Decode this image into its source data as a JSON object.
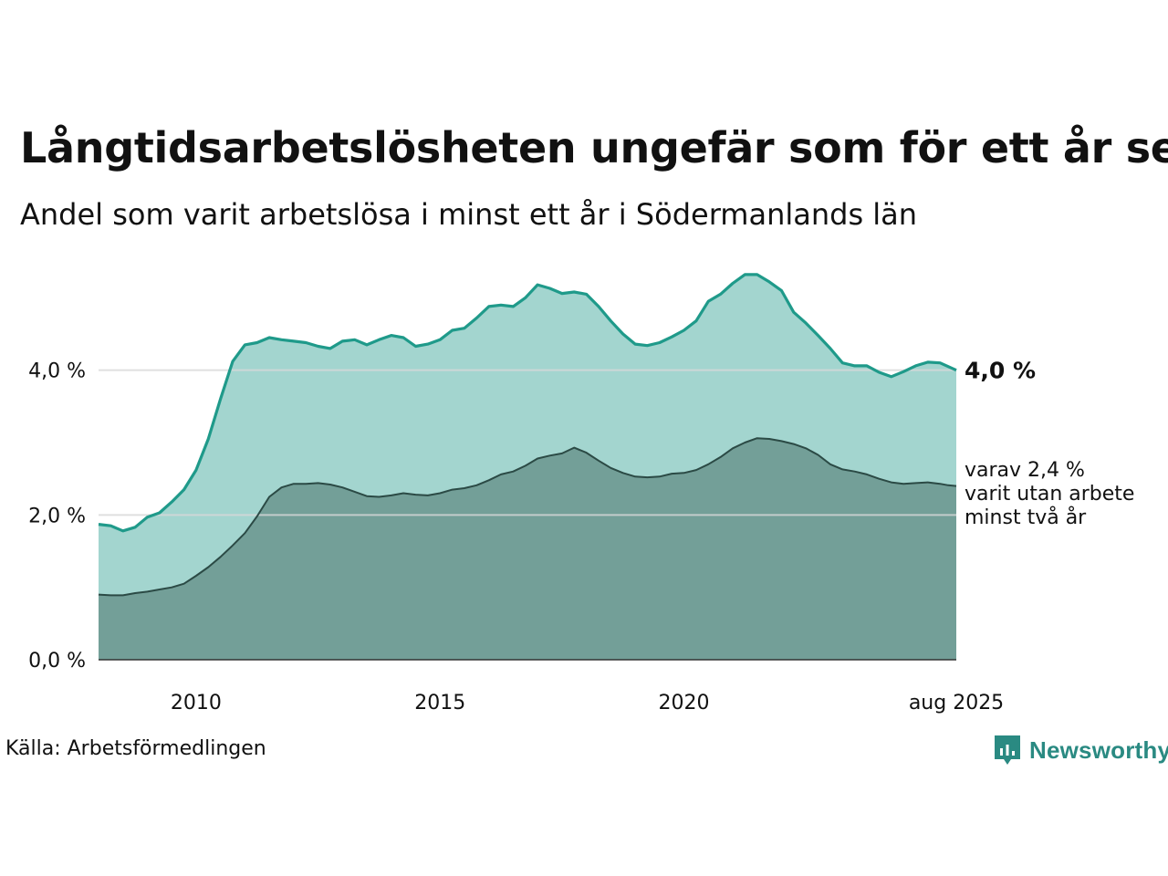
{
  "title": "Långtidsarbetslösheten ungefär som för ett år sen",
  "subtitle": "Andel som varit arbetslösa i minst ett år i Södermanlands län",
  "source": "Källa: Arbetsförmedlingen",
  "brand": "Newsworthy",
  "colors": {
    "total_line": "#1f9a8a",
    "total_fill": "#a3d5cf",
    "long_fill": "#739f98",
    "long_line": "#2b4a45",
    "grid": "#d8d8d8",
    "brand": "#2a8a82"
  },
  "chart_data": {
    "type": "area",
    "x_unit": "date",
    "xlim": [
      "2008-01",
      "2025-08"
    ],
    "ylim": [
      0,
      6
    ],
    "y_ticks": [
      "0,0 %",
      "2,0 %",
      "4,0 %"
    ],
    "x_ticks": [
      "2010",
      "2015",
      "2020",
      "aug 2025"
    ],
    "grid": "horizontal",
    "end_label_total": "4,0 %",
    "end_label_long": [
      "varav 2,4 %",
      "varit utan arbete",
      "minst två år"
    ],
    "series": [
      {
        "key": "total",
        "points": [
          [
            "2008-01",
            1.87
          ],
          [
            "2008-04",
            1.85
          ],
          [
            "2008-07",
            1.78
          ],
          [
            "2008-10",
            1.83
          ],
          [
            "2009-01",
            1.97
          ],
          [
            "2009-04",
            2.03
          ],
          [
            "2009-07",
            2.18
          ],
          [
            "2009-10",
            2.35
          ],
          [
            "2010-01",
            2.62
          ],
          [
            "2010-04",
            3.05
          ],
          [
            "2010-07",
            3.6
          ],
          [
            "2010-10",
            4.12
          ],
          [
            "2011-01",
            4.35
          ],
          [
            "2011-04",
            4.38
          ],
          [
            "2011-07",
            4.45
          ],
          [
            "2011-10",
            4.42
          ],
          [
            "2012-01",
            4.4
          ],
          [
            "2012-04",
            4.38
          ],
          [
            "2012-07",
            4.33
          ],
          [
            "2012-10",
            4.3
          ],
          [
            "2013-01",
            4.4
          ],
          [
            "2013-04",
            4.42
          ],
          [
            "2013-07",
            4.35
          ],
          [
            "2013-10",
            4.42
          ],
          [
            "2014-01",
            4.48
          ],
          [
            "2014-04",
            4.45
          ],
          [
            "2014-07",
            4.33
          ],
          [
            "2014-10",
            4.36
          ],
          [
            "2015-01",
            4.42
          ],
          [
            "2015-04",
            4.55
          ],
          [
            "2015-07",
            4.58
          ],
          [
            "2015-10",
            4.72
          ],
          [
            "2016-01",
            4.88
          ],
          [
            "2016-04",
            4.9
          ],
          [
            "2016-07",
            4.88
          ],
          [
            "2016-10",
            5.0
          ],
          [
            "2017-01",
            5.18
          ],
          [
            "2017-04",
            5.13
          ],
          [
            "2017-07",
            5.06
          ],
          [
            "2017-10",
            5.08
          ],
          [
            "2018-01",
            5.05
          ],
          [
            "2018-04",
            4.88
          ],
          [
            "2018-07",
            4.68
          ],
          [
            "2018-10",
            4.5
          ],
          [
            "2019-01",
            4.36
          ],
          [
            "2019-04",
            4.34
          ],
          [
            "2019-07",
            4.38
          ],
          [
            "2019-10",
            4.46
          ],
          [
            "2020-01",
            4.55
          ],
          [
            "2020-04",
            4.68
          ],
          [
            "2020-07",
            4.95
          ],
          [
            "2020-10",
            5.05
          ],
          [
            "2021-01",
            5.2
          ],
          [
            "2021-04",
            5.32
          ],
          [
            "2021-07",
            5.32
          ],
          [
            "2021-10",
            5.22
          ],
          [
            "2022-01",
            5.1
          ],
          [
            "2022-04",
            4.8
          ],
          [
            "2022-07",
            4.65
          ],
          [
            "2022-10",
            4.48
          ],
          [
            "2023-01",
            4.3
          ],
          [
            "2023-04",
            4.1
          ],
          [
            "2023-07",
            4.06
          ],
          [
            "2023-10",
            4.06
          ],
          [
            "2024-01",
            3.97
          ],
          [
            "2024-04",
            3.91
          ],
          [
            "2024-07",
            3.98
          ],
          [
            "2024-10",
            4.06
          ],
          [
            "2025-01",
            4.11
          ],
          [
            "2025-04",
            4.1
          ],
          [
            "2025-06",
            4.05
          ],
          [
            "2025-08",
            4.0
          ]
        ]
      },
      {
        "key": "long",
        "points": [
          [
            "2008-01",
            0.9
          ],
          [
            "2008-04",
            0.89
          ],
          [
            "2008-07",
            0.89
          ],
          [
            "2008-10",
            0.92
          ],
          [
            "2009-01",
            0.94
          ],
          [
            "2009-04",
            0.97
          ],
          [
            "2009-07",
            1.0
          ],
          [
            "2009-10",
            1.05
          ],
          [
            "2010-01",
            1.16
          ],
          [
            "2010-04",
            1.28
          ],
          [
            "2010-07",
            1.42
          ],
          [
            "2010-10",
            1.58
          ],
          [
            "2011-01",
            1.75
          ],
          [
            "2011-04",
            1.98
          ],
          [
            "2011-07",
            2.25
          ],
          [
            "2011-10",
            2.38
          ],
          [
            "2012-01",
            2.43
          ],
          [
            "2012-04",
            2.43
          ],
          [
            "2012-07",
            2.44
          ],
          [
            "2012-10",
            2.42
          ],
          [
            "2013-01",
            2.38
          ],
          [
            "2013-04",
            2.32
          ],
          [
            "2013-07",
            2.26
          ],
          [
            "2013-10",
            2.25
          ],
          [
            "2014-01",
            2.27
          ],
          [
            "2014-04",
            2.3
          ],
          [
            "2014-07",
            2.28
          ],
          [
            "2014-10",
            2.27
          ],
          [
            "2015-01",
            2.3
          ],
          [
            "2015-04",
            2.35
          ],
          [
            "2015-07",
            2.37
          ],
          [
            "2015-10",
            2.41
          ],
          [
            "2016-01",
            2.48
          ],
          [
            "2016-04",
            2.56
          ],
          [
            "2016-07",
            2.6
          ],
          [
            "2016-10",
            2.68
          ],
          [
            "2017-01",
            2.78
          ],
          [
            "2017-04",
            2.82
          ],
          [
            "2017-07",
            2.85
          ],
          [
            "2017-10",
            2.93
          ],
          [
            "2018-01",
            2.86
          ],
          [
            "2018-04",
            2.75
          ],
          [
            "2018-07",
            2.65
          ],
          [
            "2018-10",
            2.58
          ],
          [
            "2019-01",
            2.53
          ],
          [
            "2019-04",
            2.52
          ],
          [
            "2019-07",
            2.53
          ],
          [
            "2019-10",
            2.57
          ],
          [
            "2020-01",
            2.58
          ],
          [
            "2020-04",
            2.62
          ],
          [
            "2020-07",
            2.7
          ],
          [
            "2020-10",
            2.8
          ],
          [
            "2021-01",
            2.92
          ],
          [
            "2021-04",
            3.0
          ],
          [
            "2021-07",
            3.06
          ],
          [
            "2021-10",
            3.05
          ],
          [
            "2022-01",
            3.02
          ],
          [
            "2022-04",
            2.98
          ],
          [
            "2022-07",
            2.92
          ],
          [
            "2022-10",
            2.83
          ],
          [
            "2023-01",
            2.7
          ],
          [
            "2023-04",
            2.63
          ],
          [
            "2023-07",
            2.6
          ],
          [
            "2023-10",
            2.56
          ],
          [
            "2024-01",
            2.5
          ],
          [
            "2024-04",
            2.45
          ],
          [
            "2024-07",
            2.43
          ],
          [
            "2024-10",
            2.44
          ],
          [
            "2025-01",
            2.45
          ],
          [
            "2025-04",
            2.43
          ],
          [
            "2025-06",
            2.41
          ],
          [
            "2025-08",
            2.4
          ]
        ]
      }
    ]
  }
}
